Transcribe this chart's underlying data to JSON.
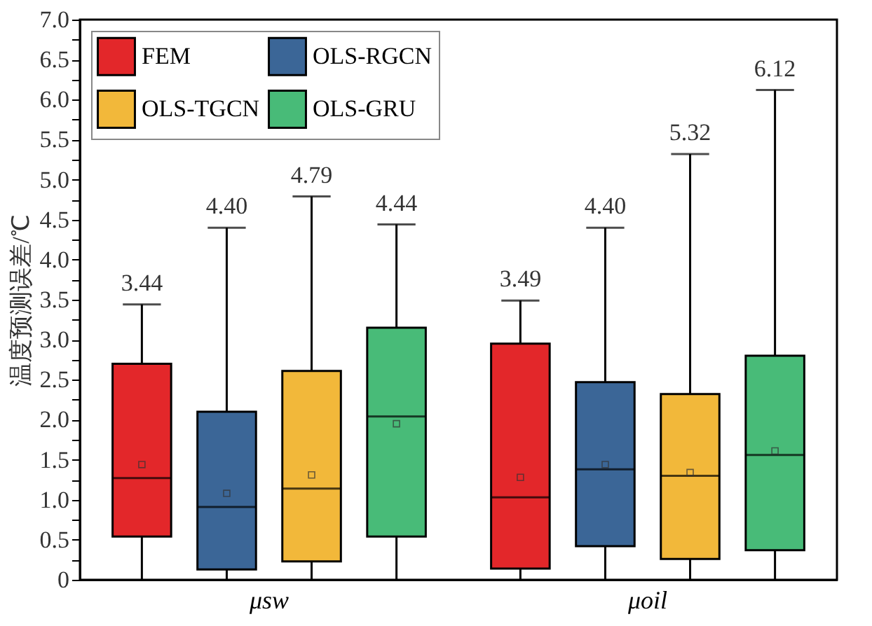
{
  "chart_data": {
    "type": "box",
    "ylabel": "温度预测误差/℃",
    "categories": [
      "μsw",
      "μoil"
    ],
    "ylim": [
      0,
      7
    ],
    "yticks": [
      0,
      {
        "value": 0.25,
        "label": null
      },
      0.5,
      {
        "value": 0.75,
        "label": null
      },
      {
        "value": 1,
        "label": "1.0"
      },
      {
        "value": 1.25,
        "label": null
      },
      1.5,
      {
        "value": 1.75,
        "label": null
      },
      {
        "value": 2,
        "label": "2.0"
      },
      {
        "value": 2.25,
        "label": null
      },
      2.5,
      {
        "value": 2.75,
        "label": null
      },
      {
        "value": 3,
        "label": "3.0"
      },
      {
        "value": 3.25,
        "label": null
      },
      3.5,
      {
        "value": 3.75,
        "label": null
      },
      {
        "value": 4,
        "label": "4.0"
      },
      {
        "value": 4.25,
        "label": null
      },
      4.5,
      {
        "value": 4.75,
        "label": null
      },
      {
        "value": 5,
        "label": "5.0"
      },
      {
        "value": 5.25,
        "label": null
      },
      5.5,
      {
        "value": 5.75,
        "label": null
      },
      {
        "value": 6,
        "label": "6.0"
      },
      {
        "value": 6.25,
        "label": null
      },
      6.5,
      {
        "value": 6.75,
        "label": null
      },
      {
        "value": 7,
        "label": "7.0"
      }
    ],
    "legend": "top left",
    "grid": false,
    "series": [
      {
        "name": "FEM",
        "color": "#e3272a",
        "value_labels": [
          "3.44",
          "3.49"
        ],
        "boxes": [
          {
            "low": 0,
            "q1": 0.54,
            "median": 1.27,
            "q3": 2.7,
            "high": 3.44,
            "mean": 1.44
          },
          {
            "low": 0,
            "q1": 0.14,
            "median": 1.03,
            "q3": 2.95,
            "high": 3.49,
            "mean": 1.28
          }
        ]
      },
      {
        "name": "OLS-RGCN",
        "color": "#3b6697",
        "value_labels": [
          "4.40",
          "4.40"
        ],
        "boxes": [
          {
            "low": 0,
            "q1": 0.13,
            "median": 0.91,
            "q3": 2.1,
            "high": 4.4,
            "mean": 1.08
          },
          {
            "low": 0,
            "q1": 0.42,
            "median": 1.38,
            "q3": 2.47,
            "high": 4.4,
            "mean": 1.44
          }
        ]
      },
      {
        "name": "OLS-TGCN",
        "color": "#f2b83a",
        "value_labels": [
          "4.79",
          "5.32"
        ],
        "boxes": [
          {
            "low": 0,
            "q1": 0.23,
            "median": 1.14,
            "q3": 2.61,
            "high": 4.79,
            "mean": 1.31
          },
          {
            "low": 0,
            "q1": 0.26,
            "median": 1.3,
            "q3": 2.32,
            "high": 5.32,
            "mean": 1.34
          }
        ]
      },
      {
        "name": "OLS-GRU",
        "color": "#48bb78",
        "value_labels": [
          "4.44",
          "6.12"
        ],
        "boxes": [
          {
            "low": 0,
            "q1": 0.54,
            "median": 2.04,
            "q3": 3.15,
            "high": 4.44,
            "mean": 1.95
          },
          {
            "low": 0,
            "q1": 0.37,
            "median": 1.56,
            "q3": 2.8,
            "high": 6.12,
            "mean": 1.61
          }
        ]
      }
    ]
  }
}
